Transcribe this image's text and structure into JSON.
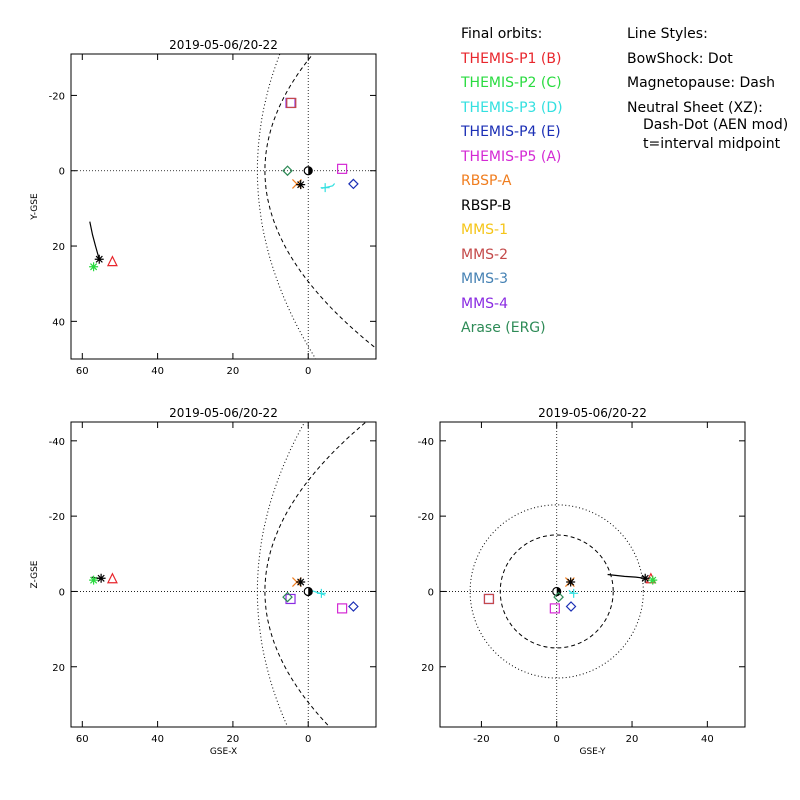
{
  "chart_data": {
    "type": "scatter",
    "panels": [
      {
        "id": "xy",
        "title": "2019-05-06/20-22",
        "xlabel": "",
        "ylabel": "Y-GSE",
        "xlim": [
          63,
          -18
        ],
        "ylim": [
          -31,
          50
        ],
        "xticks": [
          60,
          40,
          20,
          0
        ],
        "yticks": [
          -20,
          0,
          20,
          40
        ],
        "markers": [
          {
            "series": "THEMIS-P1 (B)",
            "x": 52,
            "y": 24,
            "symbol": "triangle",
            "color": "#e8262c"
          },
          {
            "series": "THEMIS-P2 (C)",
            "x": 57,
            "y": 25.5,
            "symbol": "asterisk",
            "color": "#2adb40"
          },
          {
            "series": "THEMIS-P3 (D)",
            "x": -4.5,
            "y": 4.5,
            "symbol": "plus",
            "color": "#33e0e0"
          },
          {
            "series": "THEMIS-P4 (E)",
            "x": -12,
            "y": 3.5,
            "symbol": "diamond",
            "color": "#1b2fb5"
          },
          {
            "series": "THEMIS-P5 (A)",
            "x": -9,
            "y": -0.5,
            "symbol": "square",
            "color": "#d42ad4"
          },
          {
            "series": "RBSP-A",
            "x": 3,
            "y": 3.5,
            "symbol": "cross",
            "color": "#f07d1e"
          },
          {
            "series": "RBSP-B",
            "x": 2,
            "y": 3.7,
            "symbol": "asterisk",
            "color": "#000000"
          },
          {
            "series": "RBSP-B",
            "x": 55.5,
            "y": 23.5,
            "symbol": "asterisk",
            "color": "#000000"
          },
          {
            "series": "MMS-4",
            "x": 4.7,
            "y": -18,
            "symbol": "square",
            "color": "#8a2be2"
          },
          {
            "series": "MMS-2",
            "x": 4.5,
            "y": -18,
            "symbol": "square",
            "color": "#c44a4a"
          },
          {
            "series": "Arase (ERG)",
            "x": 5.5,
            "y": 0,
            "symbol": "diamond",
            "color": "#2e8b57"
          }
        ],
        "tracks": [
          {
            "series": "RBSP-B",
            "color": "#000000",
            "points": [
              [
                58,
                13.5
              ],
              [
                57.3,
                17
              ],
              [
                56.5,
                20
              ],
              [
                55.5,
                23.5
              ]
            ]
          },
          {
            "series": "THEMIS-P3 (D)",
            "color": "#33e0e0",
            "points": [
              [
                -3.5,
                4.7
              ],
              [
                -6.5,
                4.0
              ],
              [
                -7,
                3.4
              ]
            ]
          }
        ]
      },
      {
        "id": "xz",
        "title": "2019-05-06/20-22",
        "xlabel": "GSE-X",
        "ylabel": "Z-GSE",
        "xlim": [
          63,
          -18
        ],
        "ylim": [
          -45,
          36
        ],
        "xticks": [
          60,
          40,
          20,
          0
        ],
        "yticks": [
          20,
          0,
          -20,
          -40
        ],
        "markers": [
          {
            "series": "THEMIS-P1 (B)",
            "x": 52,
            "y": -3.5,
            "symbol": "triangle",
            "color": "#e8262c"
          },
          {
            "series": "THEMIS-P2 (C)",
            "x": 57,
            "y": -3,
            "symbol": "asterisk",
            "color": "#2adb40"
          },
          {
            "series": "THEMIS-P3 (D)",
            "x": -3.5,
            "y": 0.5,
            "symbol": "plus",
            "color": "#33e0e0"
          },
          {
            "series": "THEMIS-P4 (E)",
            "x": -12,
            "y": 4,
            "symbol": "diamond",
            "color": "#1b2fb5"
          },
          {
            "series": "THEMIS-P5 (A)",
            "x": -9,
            "y": 4.5,
            "symbol": "square",
            "color": "#d42ad4"
          },
          {
            "series": "RBSP-A",
            "x": 3,
            "y": -2.5,
            "symbol": "cross",
            "color": "#f07d1e"
          },
          {
            "series": "RBSP-B",
            "x": 2,
            "y": -2.5,
            "symbol": "asterisk",
            "color": "#000000"
          },
          {
            "series": "RBSP-B",
            "x": 55,
            "y": -3.5,
            "symbol": "asterisk",
            "color": "#000000"
          },
          {
            "series": "MMS-4",
            "x": 4.7,
            "y": 2,
            "symbol": "square",
            "color": "#8a2be2"
          },
          {
            "series": "Arase (ERG)",
            "x": 5.5,
            "y": 1.5,
            "symbol": "diamond",
            "color": "#2e8b57"
          }
        ],
        "tracks": [
          {
            "series": "RBSP-B",
            "color": "#000000",
            "points": [
              [
                57.5,
                -3.8
              ],
              [
                56.5,
                -3.6
              ],
              [
                55,
                -3.5
              ]
            ]
          },
          {
            "series": "THEMIS-P3 (D)",
            "color": "#33e0e0",
            "points": [
              [
                -1,
                -0.2
              ],
              [
                -2.5,
                0.3
              ],
              [
                -4.5,
                1
              ]
            ]
          }
        ]
      },
      {
        "id": "yz",
        "title": "2019-05-06/20-22",
        "xlabel": "GSE-Y",
        "ylabel": "",
        "xlim": [
          -31,
          50
        ],
        "ylim": [
          -45,
          36
        ],
        "xticks": [
          -20,
          0,
          20,
          40
        ],
        "yticks": [
          20,
          0,
          -20,
          -40
        ],
        "markers": [
          {
            "series": "THEMIS-P1 (B)",
            "x": 25,
            "y": -3.5,
            "symbol": "triangle",
            "color": "#e8262c"
          },
          {
            "series": "THEMIS-P2 (C)",
            "x": 25.5,
            "y": -3,
            "symbol": "asterisk",
            "color": "#2adb40"
          },
          {
            "series": "THEMIS-P3 (D)",
            "x": 4.5,
            "y": 0.5,
            "symbol": "plus",
            "color": "#33e0e0"
          },
          {
            "series": "THEMIS-P4 (E)",
            "x": 3.8,
            "y": 4,
            "symbol": "diamond",
            "color": "#1b2fb5"
          },
          {
            "series": "THEMIS-P5 (A)",
            "x": -0.5,
            "y": 4.5,
            "symbol": "square",
            "color": "#d42ad4"
          },
          {
            "series": "RBSP-A",
            "x": 3.5,
            "y": -2.5,
            "symbol": "cross",
            "color": "#f07d1e"
          },
          {
            "series": "RBSP-B",
            "x": 3.7,
            "y": -2.5,
            "symbol": "asterisk",
            "color": "#000000"
          },
          {
            "series": "RBSP-B",
            "x": 23.5,
            "y": -3.5,
            "symbol": "asterisk",
            "color": "#000000"
          },
          {
            "series": "MMS-4",
            "x": -18,
            "y": 2,
            "symbol": "square",
            "color": "#8a2be2"
          },
          {
            "series": "MMS-2",
            "x": -18,
            "y": 2,
            "symbol": "square",
            "color": "#c44a4a"
          },
          {
            "series": "Arase (ERG)",
            "x": 0.5,
            "y": 1.5,
            "symbol": "diamond",
            "color": "#2e8b57"
          }
        ],
        "tracks": [
          {
            "series": "RBSP-B",
            "color": "#000000",
            "points": [
              [
                13.5,
                -4.5
              ],
              [
                18,
                -4
              ],
              [
                21,
                -3.8
              ],
              [
                23.5,
                -3.5
              ]
            ]
          },
          {
            "series": "THEMIS-P3 (D)",
            "color": "#33e0e0",
            "points": [
              [
                3.2,
                -0.3
              ],
              [
                3.8,
                0.2
              ],
              [
                4.5,
                0.5
              ]
            ]
          }
        ]
      }
    ],
    "boundaries": {
      "bowshock": {
        "style": "dot",
        "subsolar": 13.5,
        "flank": 31
      },
      "magnetopause": {
        "style": "dash",
        "subsolar": 11.5,
        "flank": 14.5,
        "cross_radius": 15
      },
      "bowshock_cross_radius": 23
    }
  },
  "legend": {
    "title": "Final orbits:",
    "items": [
      {
        "label": "THEMIS-P1 (B)",
        "color": "#e8262c"
      },
      {
        "label": "THEMIS-P2 (C)",
        "color": "#2adb40"
      },
      {
        "label": "THEMIS-P3 (D)",
        "color": "#33e0e0"
      },
      {
        "label": "THEMIS-P4 (E)",
        "color": "#1b2fb5"
      },
      {
        "label": "THEMIS-P5 (A)",
        "color": "#d42ad4"
      },
      {
        "label": "RBSP-A",
        "color": "#f07d1e"
      },
      {
        "label": "RBSP-B",
        "color": "#000000"
      },
      {
        "label": "MMS-1",
        "color": "#f5c518"
      },
      {
        "label": "MMS-2",
        "color": "#c44a4a"
      },
      {
        "label": "MMS-3",
        "color": "#4682b4"
      },
      {
        "label": "MMS-4",
        "color": "#8a2be2"
      },
      {
        "label": "Arase (ERG)",
        "color": "#2e8b57"
      }
    ]
  },
  "line_styles": {
    "title": "Line Styles:",
    "bowshock": "BowShock: Dot",
    "magnetopause": "Magnetopause: Dash",
    "neutral_sheet": "Neutral Sheet (XZ):",
    "neutral_sheet_detail": "Dash-Dot (AEN mod)",
    "midpoint": "t=interval midpoint"
  }
}
